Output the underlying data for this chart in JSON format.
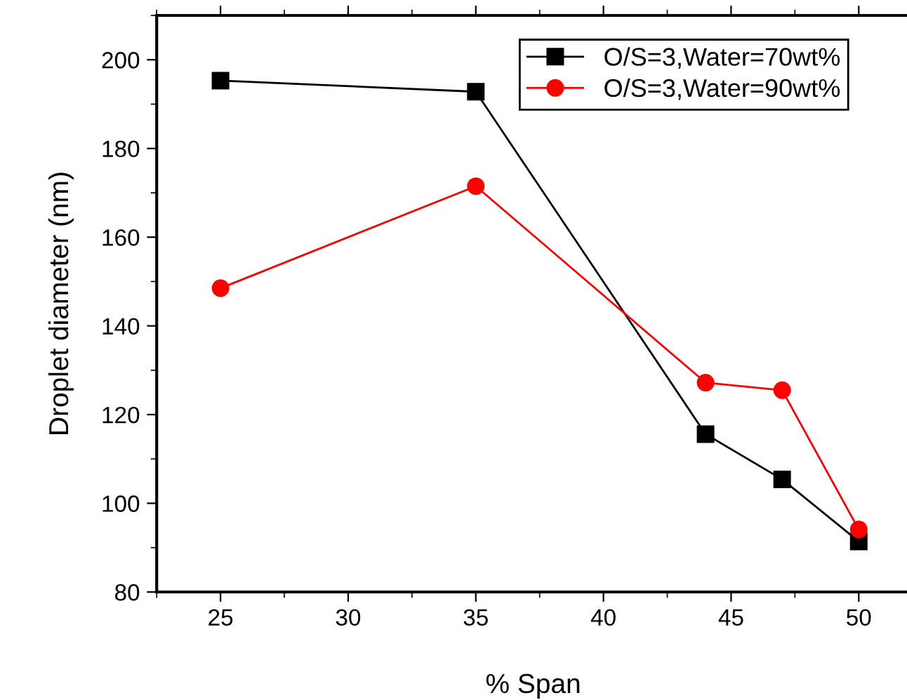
{
  "chart_data": {
    "type": "line",
    "xlabel": "% Span",
    "ylabel": "Droplet diameter (nm)",
    "x": [
      25,
      35,
      44,
      47,
      50
    ],
    "series": [
      {
        "name": "O/S=3,Water=70wt%",
        "color": "#000000",
        "marker": "square",
        "values": [
          195.3,
          192.8,
          115.6,
          105.4,
          91.4
        ]
      },
      {
        "name": "O/S=3,Water=90wt%",
        "color": "#ff0000",
        "marker": "circle",
        "values": [
          148.5,
          171.5,
          127.2,
          125.5,
          94.1
        ]
      }
    ],
    "xlim": [
      22.5,
      52
    ],
    "xticks": [
      25,
      30,
      35,
      40,
      45,
      50
    ],
    "ylim": [
      80,
      210
    ],
    "yticks": [
      80,
      100,
      120,
      140,
      160,
      180,
      200
    ],
    "grid": false,
    "legend": "top right",
    "line_style": "solid"
  }
}
